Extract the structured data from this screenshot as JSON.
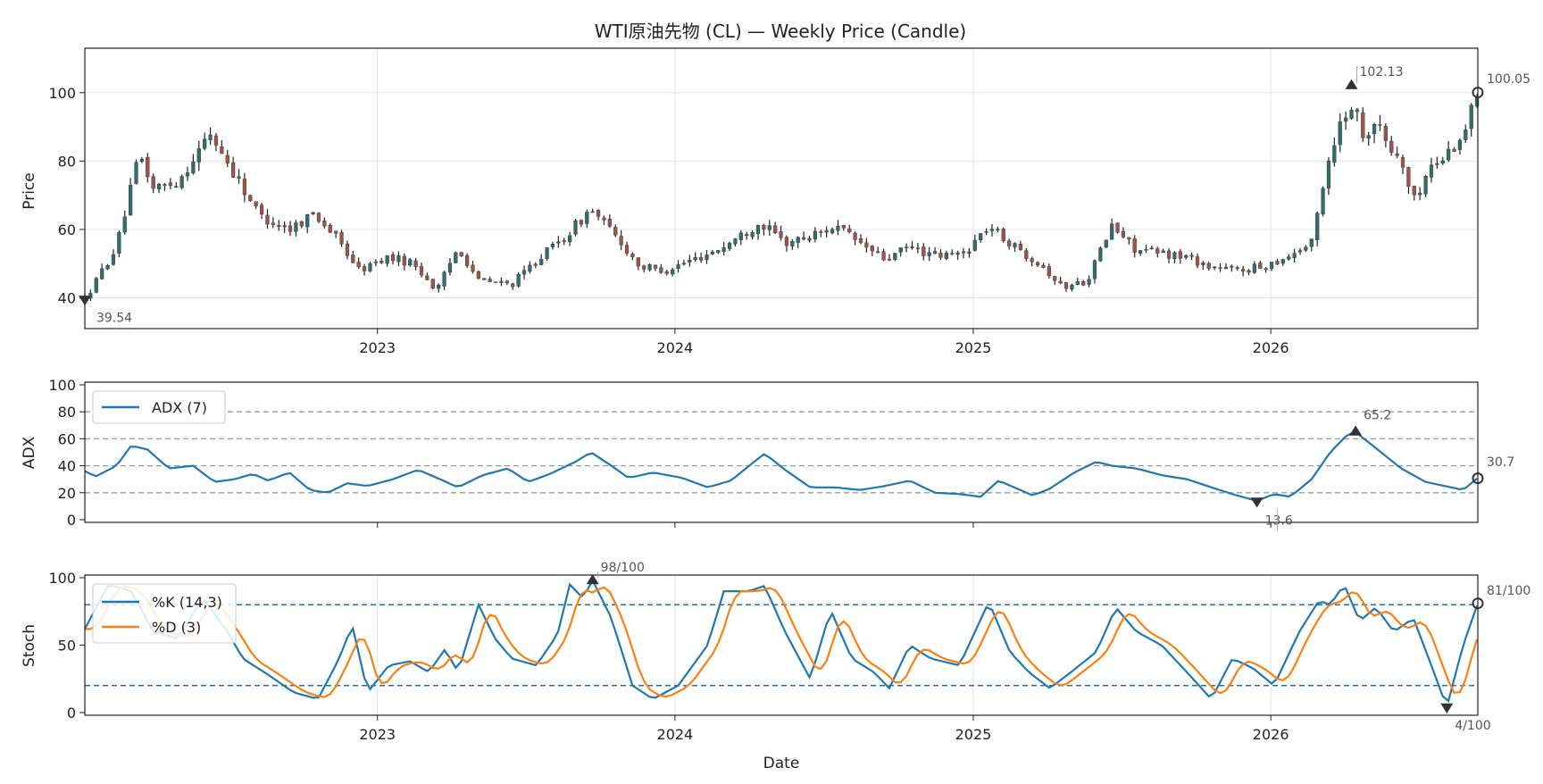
{
  "colors": {
    "up": "#2f6f68",
    "down": "#a0524e",
    "wick": "#222222",
    "adx": "#1f77b4",
    "k": "#1f77b4",
    "d": "#ff7f0e",
    "dashed": "#1f6fb4",
    "grid": "#e4e4e4",
    "marker": "#333333"
  },
  "chart_data": {
    "type": "candlestick",
    "title": "WTI原油先物 (CL) — Weekly Price (Candle)",
    "xlabel": "Date",
    "x_ticks": [
      "2023",
      "2024",
      "2025",
      "2026"
    ],
    "x_range": [
      "2022-01-07",
      "2026-09-12"
    ],
    "price_panel": {
      "ylabel": "Price",
      "ylim": [
        31,
        113
      ],
      "y_ticks": [
        40,
        60,
        80,
        100
      ],
      "annotations": {
        "max_label": "102.13",
        "min_label": "39.54",
        "last_label": "100.05"
      },
      "anchors": [
        [
          "2022-01-07",
          39.5
        ],
        [
          "2022-02-15",
          55
        ],
        [
          "2022-03-15",
          82
        ],
        [
          "2022-04-01",
          72
        ],
        [
          "2022-05-01",
          74
        ],
        [
          "2022-06-10",
          88
        ],
        [
          "2022-07-10",
          76
        ],
        [
          "2022-08-10",
          64
        ],
        [
          "2022-09-15",
          60
        ],
        [
          "2022-10-15",
          65
        ],
        [
          "2022-11-10",
          58
        ],
        [
          "2022-12-10",
          48
        ],
        [
          "2023-01-15",
          52
        ],
        [
          "2023-02-15",
          50
        ],
        [
          "2023-03-15",
          42
        ],
        [
          "2023-04-10",
          55
        ],
        [
          "2023-05-05",
          45
        ],
        [
          "2023-06-15",
          44
        ],
        [
          "2023-07-20",
          52
        ],
        [
          "2023-08-20",
          58
        ],
        [
          "2023-09-20",
          66
        ],
        [
          "2023-10-20",
          58
        ],
        [
          "2023-11-20",
          49
        ],
        [
          "2023-12-20",
          48
        ],
        [
          "2024-02-01",
          52
        ],
        [
          "2024-03-01",
          55
        ],
        [
          "2024-04-15",
          62
        ],
        [
          "2024-05-15",
          56
        ],
        [
          "2024-06-15",
          58
        ],
        [
          "2024-07-15",
          61
        ],
        [
          "2024-08-15",
          56
        ],
        [
          "2024-09-15",
          51
        ],
        [
          "2024-10-15",
          55
        ],
        [
          "2024-11-15",
          52
        ],
        [
          "2024-12-20",
          53
        ],
        [
          "2025-01-20",
          61
        ],
        [
          "2025-02-20",
          55
        ],
        [
          "2025-03-25",
          50
        ],
        [
          "2025-04-20",
          43
        ],
        [
          "2025-05-20",
          45
        ],
        [
          "2025-06-20",
          61
        ],
        [
          "2025-07-20",
          54
        ],
        [
          "2025-08-20",
          53
        ],
        [
          "2025-09-20",
          52
        ],
        [
          "2025-10-20",
          49
        ],
        [
          "2025-11-20",
          48
        ],
        [
          "2025-12-20",
          49
        ],
        [
          "2026-01-20",
          52
        ],
        [
          "2026-02-20",
          56
        ],
        [
          "2026-03-10",
          78
        ],
        [
          "2026-03-25",
          90
        ],
        [
          "2026-04-10",
          97
        ],
        [
          "2026-04-25",
          88
        ],
        [
          "2026-05-10",
          92
        ],
        [
          "2026-05-25",
          84
        ],
        [
          "2026-06-10",
          80
        ],
        [
          "2026-06-25",
          68
        ],
        [
          "2026-07-15",
          78
        ],
        [
          "2026-08-05",
          82
        ],
        [
          "2026-08-25",
          88
        ],
        [
          "2026-09-12",
          100
        ]
      ]
    },
    "adx_panel": {
      "ylabel": "ADX",
      "series_name": "ADX (7)",
      "ylim": [
        -2,
        102
      ],
      "y_ticks": [
        0,
        20,
        40,
        60,
        80,
        100
      ],
      "ref_lines": [
        20,
        40,
        60,
        80
      ],
      "annotations": {
        "max_label": "65.2",
        "min_label": "13.6",
        "last_label": "30.7"
      },
      "anchors": [
        [
          "2022-01-07",
          36
        ],
        [
          "2022-01-20",
          32
        ],
        [
          "2022-02-15",
          40
        ],
        [
          "2022-03-05",
          55
        ],
        [
          "2022-03-25",
          52
        ],
        [
          "2022-04-20",
          38
        ],
        [
          "2022-05-20",
          40
        ],
        [
          "2022-06-15",
          28
        ],
        [
          "2022-07-10",
          30
        ],
        [
          "2022-08-01",
          34
        ],
        [
          "2022-08-20",
          29
        ],
        [
          "2022-09-15",
          35
        ],
        [
          "2022-10-10",
          22
        ],
        [
          "2022-11-01",
          20
        ],
        [
          "2022-11-25",
          27
        ],
        [
          "2022-12-20",
          25
        ],
        [
          "2023-01-20",
          30
        ],
        [
          "2023-02-20",
          37
        ],
        [
          "2023-03-15",
          31
        ],
        [
          "2023-04-10",
          24
        ],
        [
          "2023-05-10",
          33
        ],
        [
          "2023-06-10",
          38
        ],
        [
          "2023-07-05",
          28
        ],
        [
          "2023-08-01",
          34
        ],
        [
          "2023-09-01",
          43
        ],
        [
          "2023-09-20",
          50
        ],
        [
          "2023-10-15",
          40
        ],
        [
          "2023-11-05",
          31
        ],
        [
          "2023-12-05",
          35
        ],
        [
          "2024-01-10",
          31
        ],
        [
          "2024-02-10",
          24
        ],
        [
          "2024-03-10",
          29
        ],
        [
          "2024-04-01",
          40
        ],
        [
          "2024-04-20",
          49
        ],
        [
          "2024-05-15",
          37
        ],
        [
          "2024-06-15",
          24
        ],
        [
          "2024-07-15",
          24
        ],
        [
          "2024-08-15",
          22
        ],
        [
          "2024-09-15",
          25
        ],
        [
          "2024-10-15",
          29
        ],
        [
          "2024-11-15",
          20
        ],
        [
          "2024-12-15",
          19
        ],
        [
          "2025-01-10",
          17
        ],
        [
          "2025-02-01",
          29
        ],
        [
          "2025-02-20",
          24
        ],
        [
          "2025-03-15",
          18
        ],
        [
          "2025-04-05",
          23
        ],
        [
          "2025-05-05",
          35
        ],
        [
          "2025-06-01",
          43
        ],
        [
          "2025-06-20",
          40
        ],
        [
          "2025-07-20",
          38
        ],
        [
          "2025-08-20",
          33
        ],
        [
          "2025-09-20",
          30
        ],
        [
          "2025-10-20",
          24
        ],
        [
          "2025-11-20",
          18
        ],
        [
          "2025-12-15",
          14
        ],
        [
          "2026-01-05",
          19
        ],
        [
          "2026-01-25",
          17
        ],
        [
          "2026-02-20",
          30
        ],
        [
          "2026-03-15",
          50
        ],
        [
          "2026-04-05",
          63
        ],
        [
          "2026-04-15",
          65
        ],
        [
          "2026-05-10",
          53
        ],
        [
          "2026-06-10",
          38
        ],
        [
          "2026-07-10",
          28
        ],
        [
          "2026-08-10",
          24
        ],
        [
          "2026-08-25",
          22
        ],
        [
          "2026-09-12",
          31
        ]
      ]
    },
    "stoch_panel": {
      "ylabel": "Stoch",
      "series": [
        {
          "name": "%K (14,3)"
        },
        {
          "name": "%D (3)"
        }
      ],
      "ylim": [
        -2,
        102
      ],
      "y_ticks": [
        0,
        50,
        100
      ],
      "ref_lines": [
        20,
        80
      ],
      "annotations": {
        "max_label": "98/100",
        "min_label": "4/100",
        "last_label": "81/100"
      },
      "anchors": [
        [
          "2022-01-07",
          62
        ],
        [
          "2022-02-05",
          95
        ],
        [
          "2022-03-05",
          90
        ],
        [
          "2022-04-01",
          60
        ],
        [
          "2022-05-01",
          55
        ],
        [
          "2022-06-01",
          85
        ],
        [
          "2022-07-01",
          60
        ],
        [
          "2022-07-20",
          40
        ],
        [
          "2022-08-20",
          28
        ],
        [
          "2022-09-20",
          15
        ],
        [
          "2022-10-20",
          10
        ],
        [
          "2022-11-15",
          40
        ],
        [
          "2022-12-01",
          65
        ],
        [
          "2022-12-20",
          15
        ],
        [
          "2023-01-15",
          35
        ],
        [
          "2023-02-10",
          38
        ],
        [
          "2023-03-05",
          30
        ],
        [
          "2023-03-25",
          47
        ],
        [
          "2023-04-10",
          30
        ],
        [
          "2023-05-05",
          80
        ],
        [
          "2023-05-25",
          55
        ],
        [
          "2023-06-15",
          40
        ],
        [
          "2023-07-15",
          35
        ],
        [
          "2023-08-10",
          58
        ],
        [
          "2023-08-25",
          95
        ],
        [
          "2023-09-10",
          85
        ],
        [
          "2023-09-22",
          98
        ],
        [
          "2023-10-15",
          70
        ],
        [
          "2023-11-10",
          20
        ],
        [
          "2023-12-05",
          10
        ],
        [
          "2024-01-05",
          20
        ],
        [
          "2024-02-10",
          50
        ],
        [
          "2024-03-01",
          90
        ],
        [
          "2024-04-01",
          90
        ],
        [
          "2024-04-20",
          94
        ],
        [
          "2024-05-15",
          60
        ],
        [
          "2024-06-15",
          25
        ],
        [
          "2024-07-10",
          76
        ],
        [
          "2024-08-05",
          40
        ],
        [
          "2024-09-01",
          30
        ],
        [
          "2024-09-20",
          18
        ],
        [
          "2024-10-15",
          50
        ],
        [
          "2024-11-10",
          40
        ],
        [
          "2024-12-15",
          35
        ],
        [
          "2025-01-20",
          82
        ],
        [
          "2025-02-15",
          45
        ],
        [
          "2025-03-10",
          30
        ],
        [
          "2025-04-05",
          18
        ],
        [
          "2025-05-01",
          30
        ],
        [
          "2025-06-01",
          45
        ],
        [
          "2025-06-25",
          78
        ],
        [
          "2025-07-20",
          60
        ],
        [
          "2025-08-20",
          50
        ],
        [
          "2025-09-20",
          30
        ],
        [
          "2025-10-20",
          10
        ],
        [
          "2025-11-15",
          40
        ],
        [
          "2025-12-10",
          33
        ],
        [
          "2026-01-05",
          20
        ],
        [
          "2026-02-05",
          60
        ],
        [
          "2026-03-01",
          83
        ],
        [
          "2026-03-15",
          80
        ],
        [
          "2026-04-01",
          95
        ],
        [
          "2026-04-20",
          68
        ],
        [
          "2026-05-10",
          78
        ],
        [
          "2026-06-01",
          60
        ],
        [
          "2026-06-25",
          70
        ],
        [
          "2026-07-20",
          30
        ],
        [
          "2026-08-05",
          4
        ],
        [
          "2026-08-25",
          50
        ],
        [
          "2026-09-12",
          81
        ]
      ]
    }
  }
}
